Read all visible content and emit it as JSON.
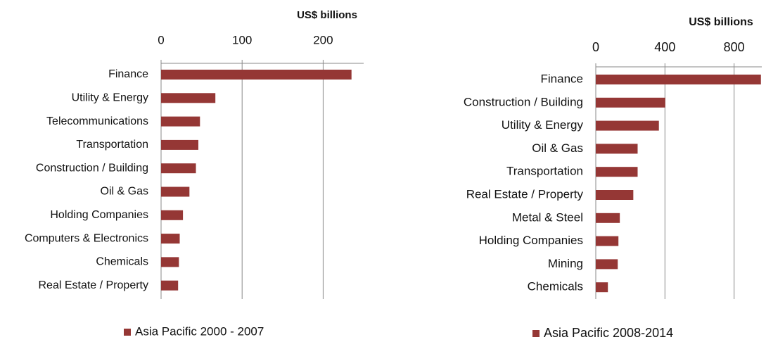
{
  "chart_data": [
    {
      "type": "bar",
      "orientation": "horizontal",
      "xlabel": "US$ billions",
      "categories": [
        "Finance",
        "Utility & Energy",
        "Telecommunications",
        "Transportation",
        "Construction / Building",
        "Oil & Gas",
        "Holding Companies",
        "Computers & Electronics",
        "Chemicals",
        "Real Estate / Property"
      ],
      "series": [
        {
          "name": "Asia Pacific 2000 - 2007",
          "color": "#953735",
          "values": [
            235,
            67,
            48,
            46,
            43,
            35,
            27,
            23,
            22,
            21
          ]
        }
      ],
      "xlim": [
        0,
        250
      ],
      "xticks": [
        0,
        100,
        200
      ],
      "grid": true
    },
    {
      "type": "bar",
      "orientation": "horizontal",
      "xlabel": "US$ billions",
      "categories": [
        "Finance",
        "Construction / Building",
        "Utility & Energy",
        "Oil & Gas",
        "Transportation",
        "Real Estate / Property",
        "Metal & Steel",
        "Holding Companies",
        "Mining",
        "Chemicals"
      ],
      "series": [
        {
          "name": "Asia Pacific 2008-2014",
          "color": "#953735",
          "values": [
            955,
            402,
            365,
            242,
            242,
            217,
            139,
            131,
            127,
            70
          ]
        }
      ],
      "xlim": [
        0,
        960
      ],
      "xticks": [
        0,
        400,
        800
      ],
      "grid": true
    }
  ]
}
